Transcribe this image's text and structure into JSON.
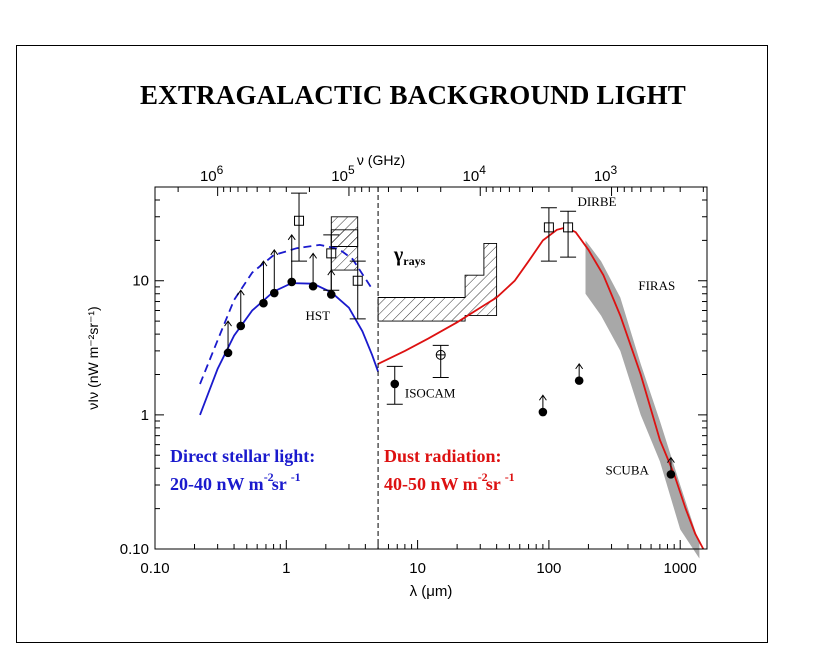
{
  "chart_data": {
    "type": "scatter",
    "title": "EXTRAGALACTIC BACKGROUND LIGHT",
    "xlabel": "λ (μm)",
    "ylabel": "νIν  (nW m⁻²sr⁻¹)",
    "top_axis_label": "ν (GHz)",
    "x_scale": "log",
    "y_scale": "log",
    "xlim": [
      0.1,
      1600
    ],
    "ylim": [
      0.1,
      50
    ],
    "x_ticks": [
      {
        "v": 0.1,
        "label": "0.10"
      },
      {
        "v": 1,
        "label": "1"
      },
      {
        "v": 10,
        "label": "10"
      },
      {
        "v": 100,
        "label": "100"
      },
      {
        "v": 1000,
        "label": "1000"
      }
    ],
    "y_ticks": [
      {
        "v": 0.1,
        "label": "0.10"
      },
      {
        "v": 1,
        "label": "1"
      },
      {
        "v": 10,
        "label": "10"
      }
    ],
    "top_ticks": [
      {
        "v": 1000000,
        "base": "10",
        "exp": "6"
      },
      {
        "v": 100000,
        "base": "10",
        "exp": "5"
      },
      {
        "v": 10000,
        "base": "10",
        "exp": "4"
      },
      {
        "v": 1000,
        "base": "10",
        "exp": "3"
      }
    ],
    "divider_x": 5,
    "colors": {
      "stellar": "#1a1acd",
      "dust": "#dd1111",
      "firas_band": "#a8a8a8",
      "axis": "#000000"
    },
    "series": [
      {
        "name": "HST",
        "kind": "points",
        "points": [
          [
            0.36,
            2.9
          ],
          [
            0.45,
            4.6
          ],
          [
            0.67,
            6.8
          ],
          [
            0.81,
            8.1
          ],
          [
            1.1,
            9.8
          ],
          [
            1.6,
            9.1
          ],
          [
            2.2,
            7.9
          ]
        ]
      },
      {
        "name": "ISOCAM",
        "kind": "points",
        "points": [
          [
            6.7,
            1.7
          ]
        ]
      },
      {
        "name": "DIRBE",
        "kind": "open-squares",
        "points": [
          [
            1.25,
            28
          ],
          [
            2.2,
            16
          ],
          [
            3.5,
            10
          ],
          [
            100,
            25
          ],
          [
            140,
            25
          ]
        ]
      },
      {
        "name": "SCUBA",
        "kind": "points",
        "points": [
          [
            850,
            0.36
          ]
        ]
      },
      {
        "name": "lower limits",
        "kind": "points",
        "points": [
          [
            90,
            1.05
          ],
          [
            170,
            1.8
          ]
        ]
      },
      {
        "name": "",
        "kind": "circled-cross",
        "points": [
          [
            15,
            2.8
          ]
        ]
      },
      {
        "name": "stellar model",
        "kind": "solid-line",
        "points": [
          [
            0.22,
            1.0
          ],
          [
            0.3,
            2.2
          ],
          [
            0.4,
            3.9
          ],
          [
            0.55,
            6.0
          ],
          [
            0.8,
            8.3
          ],
          [
            1.1,
            9.6
          ],
          [
            1.6,
            9.5
          ],
          [
            2.2,
            8.2
          ],
          [
            3.0,
            6.3
          ],
          [
            3.8,
            4.2
          ],
          [
            4.5,
            2.8
          ],
          [
            5.0,
            2.1
          ]
        ]
      },
      {
        "name": "stellar upper",
        "kind": "dashed-line",
        "points": [
          [
            0.22,
            1.7
          ],
          [
            0.3,
            3.6
          ],
          [
            0.4,
            7.2
          ],
          [
            0.55,
            11.5
          ],
          [
            0.8,
            15.5
          ],
          [
            1.2,
            17.5
          ],
          [
            1.8,
            18.5
          ],
          [
            2.5,
            17.3
          ],
          [
            3.2,
            14.5
          ],
          [
            3.8,
            11.2
          ],
          [
            4.4,
            9.0
          ]
        ]
      },
      {
        "name": "dust model",
        "kind": "solid-line",
        "points": [
          [
            5,
            2.4
          ],
          [
            8,
            3.0
          ],
          [
            12,
            3.7
          ],
          [
            20,
            4.9
          ],
          [
            30,
            6.3
          ],
          [
            40,
            7.5
          ],
          [
            55,
            10
          ],
          [
            70,
            14
          ],
          [
            90,
            20
          ],
          [
            115,
            24
          ],
          [
            135,
            25
          ],
          [
            160,
            23
          ],
          [
            200,
            17
          ],
          [
            260,
            11
          ],
          [
            350,
            5.5
          ],
          [
            500,
            2.0
          ],
          [
            700,
            0.65
          ],
          [
            900,
            0.36
          ],
          [
            1100,
            0.2
          ],
          [
            1300,
            0.13
          ],
          [
            1500,
            0.1
          ]
        ]
      },
      {
        "name": "FIRAS",
        "kind": "band",
        "upper": [
          [
            190,
            20
          ],
          [
            250,
            14
          ],
          [
            350,
            7.5
          ],
          [
            500,
            2.4
          ],
          [
            700,
            0.9
          ],
          [
            1000,
            0.3
          ],
          [
            1400,
            0.11
          ]
        ],
        "lower": [
          [
            190,
            8
          ],
          [
            250,
            5.5
          ],
          [
            350,
            3
          ],
          [
            500,
            1.0
          ],
          [
            700,
            0.45
          ],
          [
            1000,
            0.14
          ],
          [
            1400,
            0.085
          ]
        ]
      }
    ],
    "error_bars": [
      {
        "x": 1.25,
        "lo": 14,
        "hi": 45
      },
      {
        "x": 2.2,
        "lo": 8.5,
        "hi": 22
      },
      {
        "x": 3.5,
        "lo": 5.2,
        "hi": 14
      },
      {
        "x": 6.7,
        "lo": 1.2,
        "hi": 2.3
      },
      {
        "x": 15,
        "lo": 1.9,
        "hi": 3.3
      },
      {
        "x": 100,
        "lo": 14,
        "hi": 35
      },
      {
        "x": 140,
        "lo": 15,
        "hi": 33
      }
    ],
    "upper_arrows": [
      {
        "x": 0.36,
        "from": 2.9,
        "to": 5.0
      },
      {
        "x": 0.45,
        "from": 4.6,
        "to": 8.5
      },
      {
        "x": 0.67,
        "from": 6.8,
        "to": 14
      },
      {
        "x": 0.81,
        "from": 8.1,
        "to": 17
      },
      {
        "x": 1.1,
        "from": 9.8,
        "to": 22
      },
      {
        "x": 1.6,
        "from": 9.1,
        "to": 16
      },
      {
        "x": 2.2,
        "from": 7.9,
        "to": 12
      },
      {
        "x": 90,
        "from": 1.05,
        "to": 1.4
      },
      {
        "x": 170,
        "from": 1.8,
        "to": 2.4
      },
      {
        "x": 850,
        "from": 0.36,
        "to": 0.48
      }
    ],
    "hatched_regions": [
      {
        "name": "gamma-ray limits",
        "polygon": [
          [
            5,
            5
          ],
          [
            5,
            7.5
          ],
          [
            23,
            7.5
          ],
          [
            23,
            11
          ],
          [
            32,
            11
          ],
          [
            32,
            19
          ],
          [
            40,
            19
          ],
          [
            40,
            5.5
          ],
          [
            23,
            5.5
          ],
          [
            23,
            5
          ]
        ]
      },
      {
        "name": "near-IR limits",
        "polygon": [
          [
            2.2,
            30
          ],
          [
            3.5,
            30
          ],
          [
            3.5,
            12
          ],
          [
            2.2,
            12
          ]
        ]
      },
      {
        "name": "near-IR box",
        "polygon": [
          [
            2.2,
            24
          ],
          [
            3.5,
            24
          ],
          [
            3.5,
            18
          ],
          [
            2.2,
            18
          ]
        ]
      }
    ],
    "annotations": [
      {
        "text": "HST",
        "x": 1.4,
        "y": 5.1
      },
      {
        "text": "ISOCAM",
        "x": 8.0,
        "y": 1.35
      },
      {
        "text": "DIRBE",
        "x": 165,
        "y": 36
      },
      {
        "text": "FIRAS",
        "x": 480,
        "y": 8.5
      },
      {
        "text": "SCUBA",
        "x": 270,
        "y": 0.36
      },
      {
        "text": "γ",
        "x": 6.6,
        "y": 14,
        "sub": "rays"
      }
    ],
    "text_blocks": [
      {
        "line1": "Direct stellar light:",
        "line2": "20-40 nW m",
        "exp1": "-2",
        "mid": "sr",
        "exp2": "-1",
        "color": "stellar"
      },
      {
        "line1": "Dust radiation:",
        "line2": "40-50 nW m",
        "exp1": "-2",
        "mid": "sr",
        "exp2": "-1",
        "color": "dust"
      }
    ]
  }
}
